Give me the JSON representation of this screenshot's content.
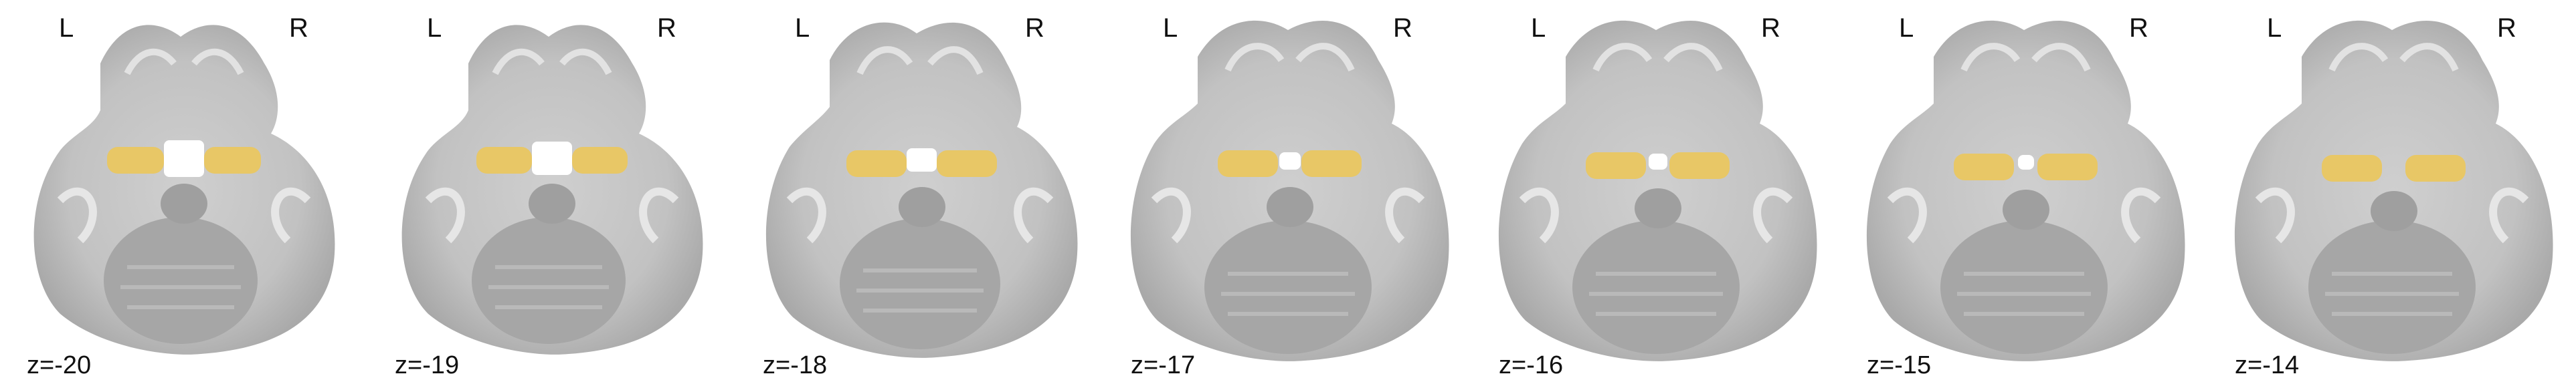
{
  "figure": {
    "orientation_left": "L",
    "orientation_right": "R",
    "overlay_color": "#e8c766",
    "brain_color": "#bdbdbd",
    "background": "#ffffff",
    "slices": [
      {
        "label": "z=-20"
      },
      {
        "label": "z=-19"
      },
      {
        "label": "z=-18"
      },
      {
        "label": "z=-17"
      },
      {
        "label": "z=-16"
      },
      {
        "label": "z=-15"
      },
      {
        "label": "z=-14"
      }
    ]
  }
}
